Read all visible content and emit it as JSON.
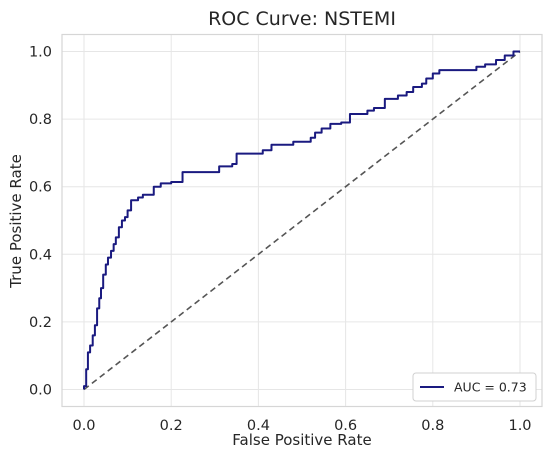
{
  "chart_data": {
    "type": "line",
    "title": "ROC Curve: NSTEMI",
    "xlabel": "False Positive Rate",
    "ylabel": "True Positive Rate",
    "xlim": [
      -0.05,
      1.05
    ],
    "ylim": [
      -0.05,
      1.05
    ],
    "xticks": [
      "0.0",
      "0.2",
      "0.4",
      "0.6",
      "0.8",
      "1.0"
    ],
    "yticks": [
      "0.0",
      "0.2",
      "0.4",
      "0.6",
      "0.8",
      "1.0"
    ],
    "grid": true,
    "legend_position": "lower-right",
    "series": [
      {
        "name": "AUC = 0.73",
        "color": "#1a1a80",
        "style": "solid",
        "x": [
          0,
          0,
          0.005,
          0.005,
          0.009,
          0.009,
          0.014,
          0.014,
          0.02,
          0.02,
          0.025,
          0.025,
          0.03,
          0.03,
          0.035,
          0.035,
          0.039,
          0.039,
          0.044,
          0.044,
          0.05,
          0.05,
          0.055,
          0.055,
          0.062,
          0.062,
          0.068,
          0.068,
          0.073,
          0.073,
          0.08,
          0.08,
          0.087,
          0.087,
          0.094,
          0.094,
          0.1,
          0.1,
          0.108,
          0.108,
          0.124,
          0.124,
          0.135,
          0.135,
          0.16,
          0.16,
          0.176,
          0.176,
          0.2,
          0.2,
          0.226,
          0.226,
          0.31,
          0.31,
          0.34,
          0.34,
          0.35,
          0.35,
          0.41,
          0.41,
          0.43,
          0.43,
          0.48,
          0.48,
          0.52,
          0.52,
          0.53,
          0.53,
          0.545,
          0.545,
          0.565,
          0.565,
          0.59,
          0.59,
          0.61,
          0.61,
          0.65,
          0.65,
          0.665,
          0.665,
          0.69,
          0.69,
          0.72,
          0.72,
          0.74,
          0.74,
          0.755,
          0.755,
          0.775,
          0.775,
          0.785,
          0.785,
          0.8,
          0.8,
          0.815,
          0.815,
          0.9,
          0.9,
          0.92,
          0.92,
          0.945,
          0.945,
          0.965,
          0.965,
          0.985,
          0.985,
          1.0
        ],
        "y": [
          0,
          0.01,
          0.01,
          0.06,
          0.06,
          0.11,
          0.11,
          0.13,
          0.13,
          0.16,
          0.16,
          0.19,
          0.19,
          0.24,
          0.24,
          0.27,
          0.27,
          0.3,
          0.3,
          0.34,
          0.34,
          0.37,
          0.37,
          0.39,
          0.39,
          0.41,
          0.41,
          0.43,
          0.43,
          0.45,
          0.45,
          0.48,
          0.48,
          0.5,
          0.5,
          0.51,
          0.51,
          0.53,
          0.53,
          0.56,
          0.56,
          0.568,
          0.568,
          0.576,
          0.576,
          0.6,
          0.6,
          0.61,
          0.61,
          0.614,
          0.614,
          0.643,
          0.643,
          0.66,
          0.66,
          0.667,
          0.667,
          0.698,
          0.698,
          0.708,
          0.708,
          0.724,
          0.724,
          0.733,
          0.733,
          0.745,
          0.745,
          0.76,
          0.76,
          0.772,
          0.772,
          0.786,
          0.786,
          0.79,
          0.79,
          0.815,
          0.815,
          0.825,
          0.825,
          0.833,
          0.833,
          0.86,
          0.86,
          0.87,
          0.87,
          0.88,
          0.88,
          0.895,
          0.895,
          0.905,
          0.905,
          0.92,
          0.92,
          0.935,
          0.935,
          0.945,
          0.945,
          0.955,
          0.955,
          0.962,
          0.962,
          0.975,
          0.975,
          0.988,
          0.988,
          1.0,
          1.0
        ]
      },
      {
        "color": "#555555",
        "style": "dashed",
        "x": [
          0,
          1
        ],
        "y": [
          0,
          1
        ]
      }
    ]
  }
}
